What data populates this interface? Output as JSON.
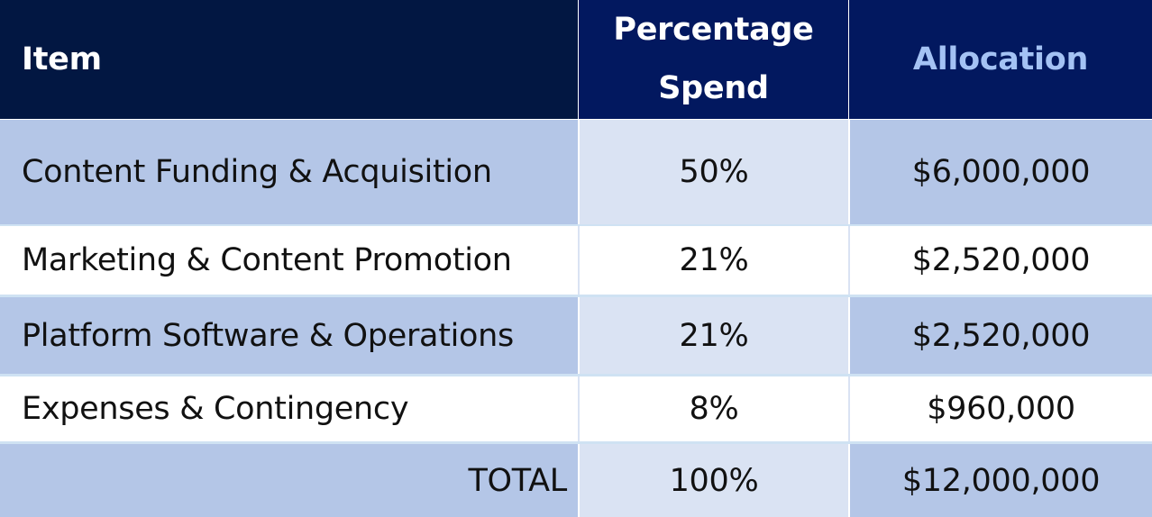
{
  "header": {
    "item": "Item",
    "percentage_line1": "Percentage",
    "percentage_line2": "Spend",
    "allocation": "Allocation"
  },
  "rows": [
    {
      "item": "Content Funding & Acquisition",
      "percentage": "50%",
      "allocation": "$6,000,000"
    },
    {
      "item": "Marketing & Content Promotion",
      "percentage": "21%",
      "allocation": "$2,520,000"
    },
    {
      "item": "Platform Software & Operations",
      "percentage": "21%",
      "allocation": "$2,520,000"
    },
    {
      "item": "Expenses & Contingency",
      "percentage": "8%",
      "allocation": "$960,000"
    }
  ],
  "total": {
    "label": "TOTAL",
    "percentage": "100%",
    "allocation": "$12,000,000"
  },
  "colors": {
    "header_dark": "#021742",
    "header_navy": "#02185f",
    "allocation_header_text": "#a4c2f4",
    "row_shade": "#b4c6e7",
    "row_shade_light": "#dae3f3"
  }
}
